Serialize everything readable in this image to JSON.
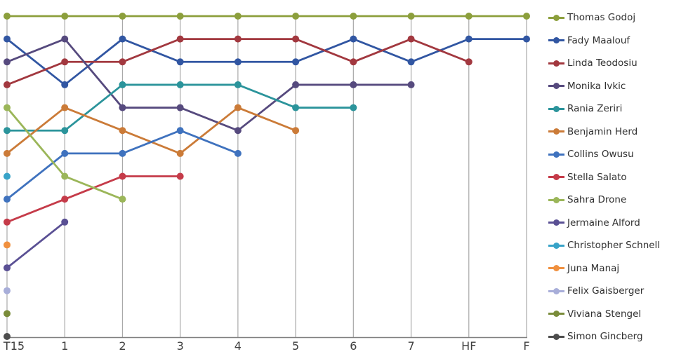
{
  "chart_data": {
    "type": "line",
    "title": "",
    "xlabel": "",
    "ylabel": "",
    "categories": [
      "T15",
      "1",
      "2",
      "3",
      "4",
      "5",
      "6",
      "7",
      "HF",
      "F"
    ],
    "y_axis": {
      "meaning": "rank/placement per round, 1 = best",
      "min": 1,
      "max": 15,
      "inverted": true,
      "tick_labels_visible": false
    },
    "grid": "vertical-only",
    "legend_position": "right",
    "series": [
      {
        "name": "Thomas Godoj",
        "color": "#8C9F3C",
        "values": [
          1,
          1,
          1,
          1,
          1,
          1,
          1,
          1,
          1,
          1
        ]
      },
      {
        "name": "Fady Maalouf",
        "color": "#3156A2",
        "values": [
          2,
          4,
          2,
          3,
          3,
          3,
          2,
          3,
          2,
          2
        ]
      },
      {
        "name": "Linda Teodosiu",
        "color": "#A2383F",
        "values": [
          4,
          3,
          3,
          2,
          2,
          2,
          3,
          2,
          3,
          null
        ]
      },
      {
        "name": "Monika Ivkic",
        "color": "#564A7E",
        "values": [
          3,
          2,
          5,
          5,
          6,
          4,
          4,
          4,
          null,
          null
        ]
      },
      {
        "name": "Rania Zeriri",
        "color": "#2B949B",
        "values": [
          6,
          6,
          4,
          4,
          4,
          5,
          5,
          null,
          null,
          null
        ]
      },
      {
        "name": "Benjamin Herd",
        "color": "#CB7B38",
        "values": [
          7,
          5,
          6,
          7,
          5,
          6,
          null,
          null,
          null,
          null
        ]
      },
      {
        "name": "Collins Owusu",
        "color": "#3F72BE",
        "values": [
          9,
          7,
          7,
          6,
          7,
          null,
          null,
          null,
          null,
          null
        ]
      },
      {
        "name": "Stella Salato",
        "color": "#C53B49",
        "values": [
          10,
          9,
          8,
          8,
          null,
          null,
          null,
          null,
          null,
          null
        ]
      },
      {
        "name": "Sahra Drone",
        "color": "#9BB659",
        "values": [
          5,
          8,
          9,
          null,
          null,
          null,
          null,
          null,
          null,
          null
        ]
      },
      {
        "name": "Jermaine Alford",
        "color": "#5A5094",
        "values": [
          12,
          10,
          null,
          null,
          null,
          null,
          null,
          null,
          null,
          null
        ]
      },
      {
        "name": "Christopher Schnell",
        "color": "#38A3C8",
        "values": [
          8,
          null,
          null,
          null,
          null,
          null,
          null,
          null,
          null,
          null
        ]
      },
      {
        "name": "Juna Manaj",
        "color": "#F0903F",
        "values": [
          11,
          null,
          null,
          null,
          null,
          null,
          null,
          null,
          null,
          null
        ]
      },
      {
        "name": "Felix Gaisberger",
        "color": "#A8AED9",
        "values": [
          13,
          null,
          null,
          null,
          null,
          null,
          null,
          null,
          null,
          null
        ]
      },
      {
        "name": "Viviana Stengel",
        "color": "#7A8C3A",
        "values": [
          14,
          null,
          null,
          null,
          null,
          null,
          null,
          null,
          null,
          null
        ]
      },
      {
        "name": "Simon Gincberg",
        "color": "#4D4D4D",
        "values": [
          15,
          null,
          null,
          null,
          null,
          null,
          null,
          null,
          null,
          null
        ]
      }
    ],
    "colors": {
      "axis_line": "#808080",
      "grid_line": "#A9A9A9",
      "axis_label_text": "#3F3F3F",
      "legend_text": "#303030",
      "background": "#FFFFFF"
    },
    "legend_marker": "line-dot"
  }
}
